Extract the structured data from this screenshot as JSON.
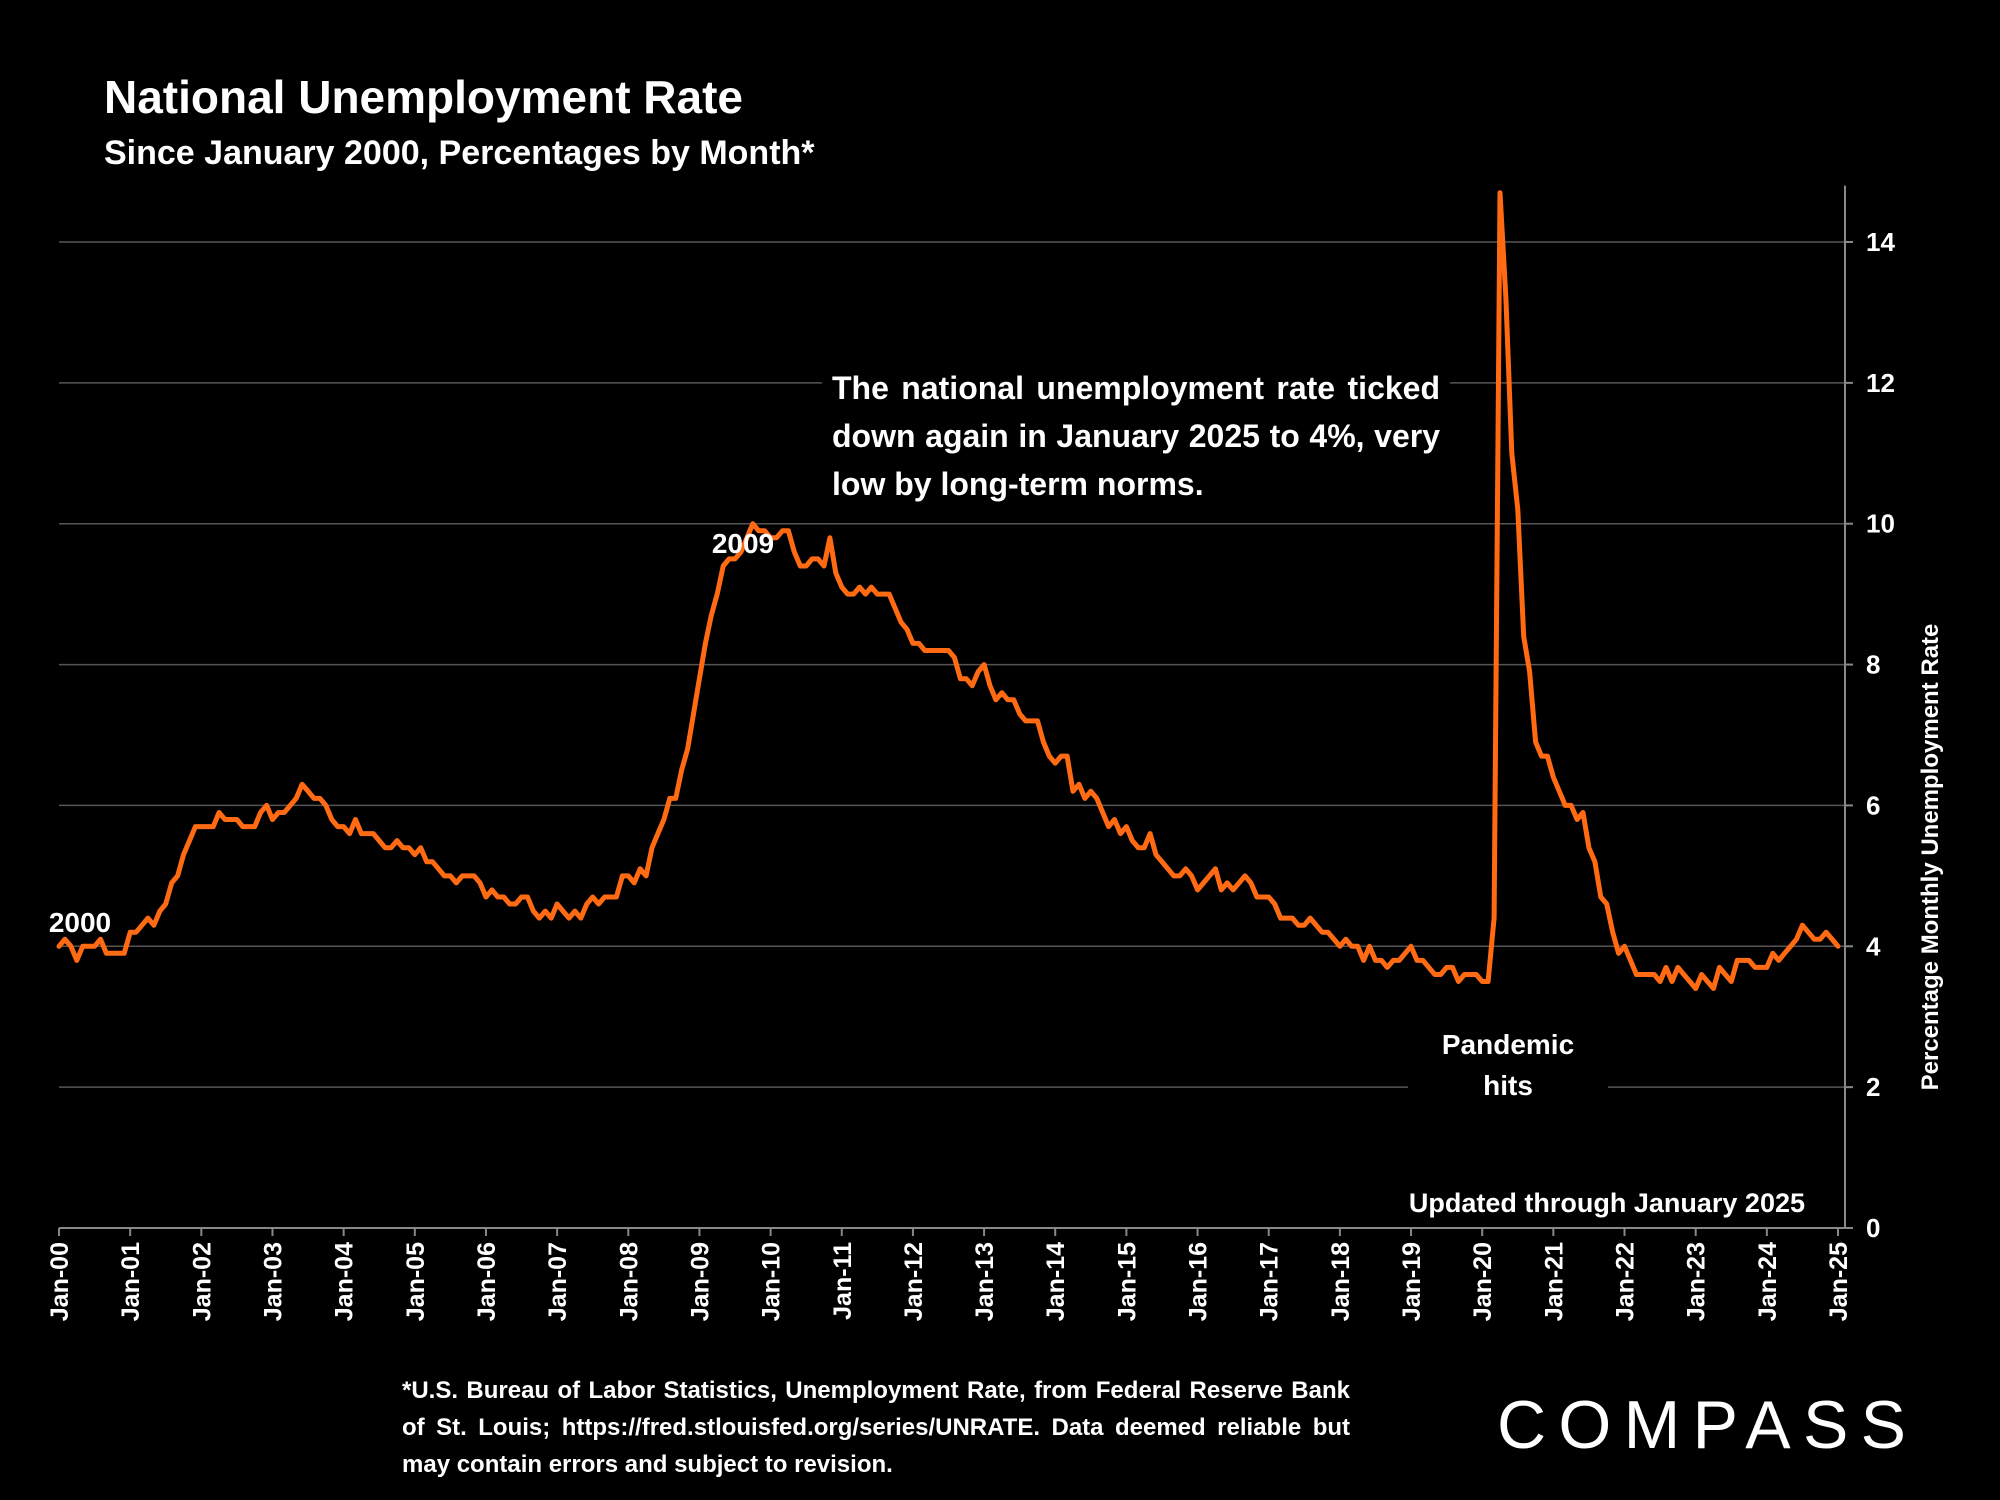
{
  "title": "National Unemployment Rate",
  "subtitle": "Since January 2000, Percentages by Month*",
  "annotation": "The national unemployment rate ticked down again in January 2025 to 4%, very low by long-term norms.",
  "footnote": "*U.S. Bureau of Labor Statistics, Unemployment Rate, from Federal Reserve Bank of St. Louis; https://fred.stlouisfed.org/series/UNRATE. Data deemed reliable but may contain errors and subject to revision.",
  "updated_note": "Updated through January 2025",
  "brand": "COMPASS",
  "colors": {
    "line": "#ff6a13",
    "background": "#000000",
    "grid": "#555555",
    "text": "#ffffff"
  },
  "chart_data": {
    "type": "line",
    "title": "National Unemployment Rate",
    "subtitle": "Since January 2000, Percentages by Month*",
    "ylabel": "Percentage Monthly Unemployment Rate",
    "ylim": [
      0,
      15
    ],
    "yticks": [
      0,
      2,
      4,
      6,
      8,
      10,
      12,
      14
    ],
    "y_axis_side": "right",
    "grid": "horizontal",
    "x_start": "2000-01",
    "x_end": "2025-01",
    "xticks": [
      "Jan-00",
      "Jan-01",
      "Jan-02",
      "Jan-03",
      "Jan-04",
      "Jan-05",
      "Jan-06",
      "Jan-07",
      "Jan-08",
      "Jan-09",
      "Jan-10",
      "Jan-11",
      "Jan-12",
      "Jan-13",
      "Jan-14",
      "Jan-15",
      "Jan-16",
      "Jan-17",
      "Jan-18",
      "Jan-19",
      "Jan-20",
      "Jan-21",
      "Jan-22",
      "Jan-23",
      "Jan-24",
      "Jan-25"
    ],
    "series": [
      {
        "values": [
          4.0,
          4.1,
          4.0,
          3.8,
          4.0,
          4.0,
          4.0,
          4.1,
          3.9,
          3.9,
          3.9,
          3.9,
          4.2,
          4.2,
          4.3,
          4.4,
          4.3,
          4.5,
          4.6,
          4.9,
          5.0,
          5.3,
          5.5,
          5.7,
          5.7,
          5.7,
          5.7,
          5.9,
          5.8,
          5.8,
          5.8,
          5.7,
          5.7,
          5.7,
          5.9,
          6.0,
          5.8,
          5.9,
          5.9,
          6.0,
          6.1,
          6.3,
          6.2,
          6.1,
          6.1,
          6.0,
          5.8,
          5.7,
          5.7,
          5.6,
          5.8,
          5.6,
          5.6,
          5.6,
          5.5,
          5.4,
          5.4,
          5.5,
          5.4,
          5.4,
          5.3,
          5.4,
          5.2,
          5.2,
          5.1,
          5.0,
          5.0,
          4.9,
          5.0,
          5.0,
          5.0,
          4.9,
          4.7,
          4.8,
          4.7,
          4.7,
          4.6,
          4.6,
          4.7,
          4.7,
          4.5,
          4.4,
          4.5,
          4.4,
          4.6,
          4.5,
          4.4,
          4.5,
          4.4,
          4.6,
          4.7,
          4.6,
          4.7,
          4.7,
          4.7,
          5.0,
          5.0,
          4.9,
          5.1,
          5.0,
          5.4,
          5.6,
          5.8,
          6.1,
          6.1,
          6.5,
          6.8,
          7.3,
          7.8,
          8.3,
          8.7,
          9.0,
          9.4,
          9.5,
          9.5,
          9.6,
          9.8,
          10.0,
          9.9,
          9.9,
          9.8,
          9.8,
          9.9,
          9.9,
          9.6,
          9.4,
          9.4,
          9.5,
          9.5,
          9.4,
          9.8,
          9.3,
          9.1,
          9.0,
          9.0,
          9.1,
          9.0,
          9.1,
          9.0,
          9.0,
          9.0,
          8.8,
          8.6,
          8.5,
          8.3,
          8.3,
          8.2,
          8.2,
          8.2,
          8.2,
          8.2,
          8.1,
          7.8,
          7.8,
          7.7,
          7.9,
          8.0,
          7.7,
          7.5,
          7.6,
          7.5,
          7.5,
          7.3,
          7.2,
          7.2,
          7.2,
          6.9,
          6.7,
          6.6,
          6.7,
          6.7,
          6.2,
          6.3,
          6.1,
          6.2,
          6.1,
          5.9,
          5.7,
          5.8,
          5.6,
          5.7,
          5.5,
          5.4,
          5.4,
          5.6,
          5.3,
          5.2,
          5.1,
          5.0,
          5.0,
          5.1,
          5.0,
          4.8,
          4.9,
          5.0,
          5.1,
          4.8,
          4.9,
          4.8,
          4.9,
          5.0,
          4.9,
          4.7,
          4.7,
          4.7,
          4.6,
          4.4,
          4.4,
          4.4,
          4.3,
          4.3,
          4.4,
          4.3,
          4.2,
          4.2,
          4.1,
          4.0,
          4.1,
          4.0,
          4.0,
          3.8,
          4.0,
          3.8,
          3.8,
          3.7,
          3.8,
          3.8,
          3.9,
          4.0,
          3.8,
          3.8,
          3.7,
          3.6,
          3.6,
          3.7,
          3.7,
          3.5,
          3.6,
          3.6,
          3.6,
          3.5,
          3.5,
          4.4,
          14.7,
          13.2,
          11.0,
          10.2,
          8.4,
          7.9,
          6.9,
          6.7,
          6.7,
          6.4,
          6.2,
          6.0,
          6.0,
          5.8,
          5.9,
          5.4,
          5.2,
          4.7,
          4.6,
          4.2,
          3.9,
          4.0,
          3.8,
          3.6,
          3.6,
          3.6,
          3.6,
          3.5,
          3.7,
          3.5,
          3.7,
          3.6,
          3.5,
          3.4,
          3.6,
          3.5,
          3.4,
          3.7,
          3.6,
          3.5,
          3.8,
          3.8,
          3.8,
          3.7,
          3.7,
          3.7,
          3.9,
          3.8,
          3.9,
          4.0,
          4.1,
          4.3,
          4.2,
          4.1,
          4.1,
          4.2,
          4.1,
          4.0
        ]
      }
    ],
    "annotations": [
      {
        "label": "2000",
        "x": "2000-01",
        "y": 4.0
      },
      {
        "label": "2009",
        "x": "2009-10",
        "y": 10.0
      },
      {
        "label": "Pandemic hits",
        "x": "2020-04",
        "y": 3.5
      }
    ]
  }
}
